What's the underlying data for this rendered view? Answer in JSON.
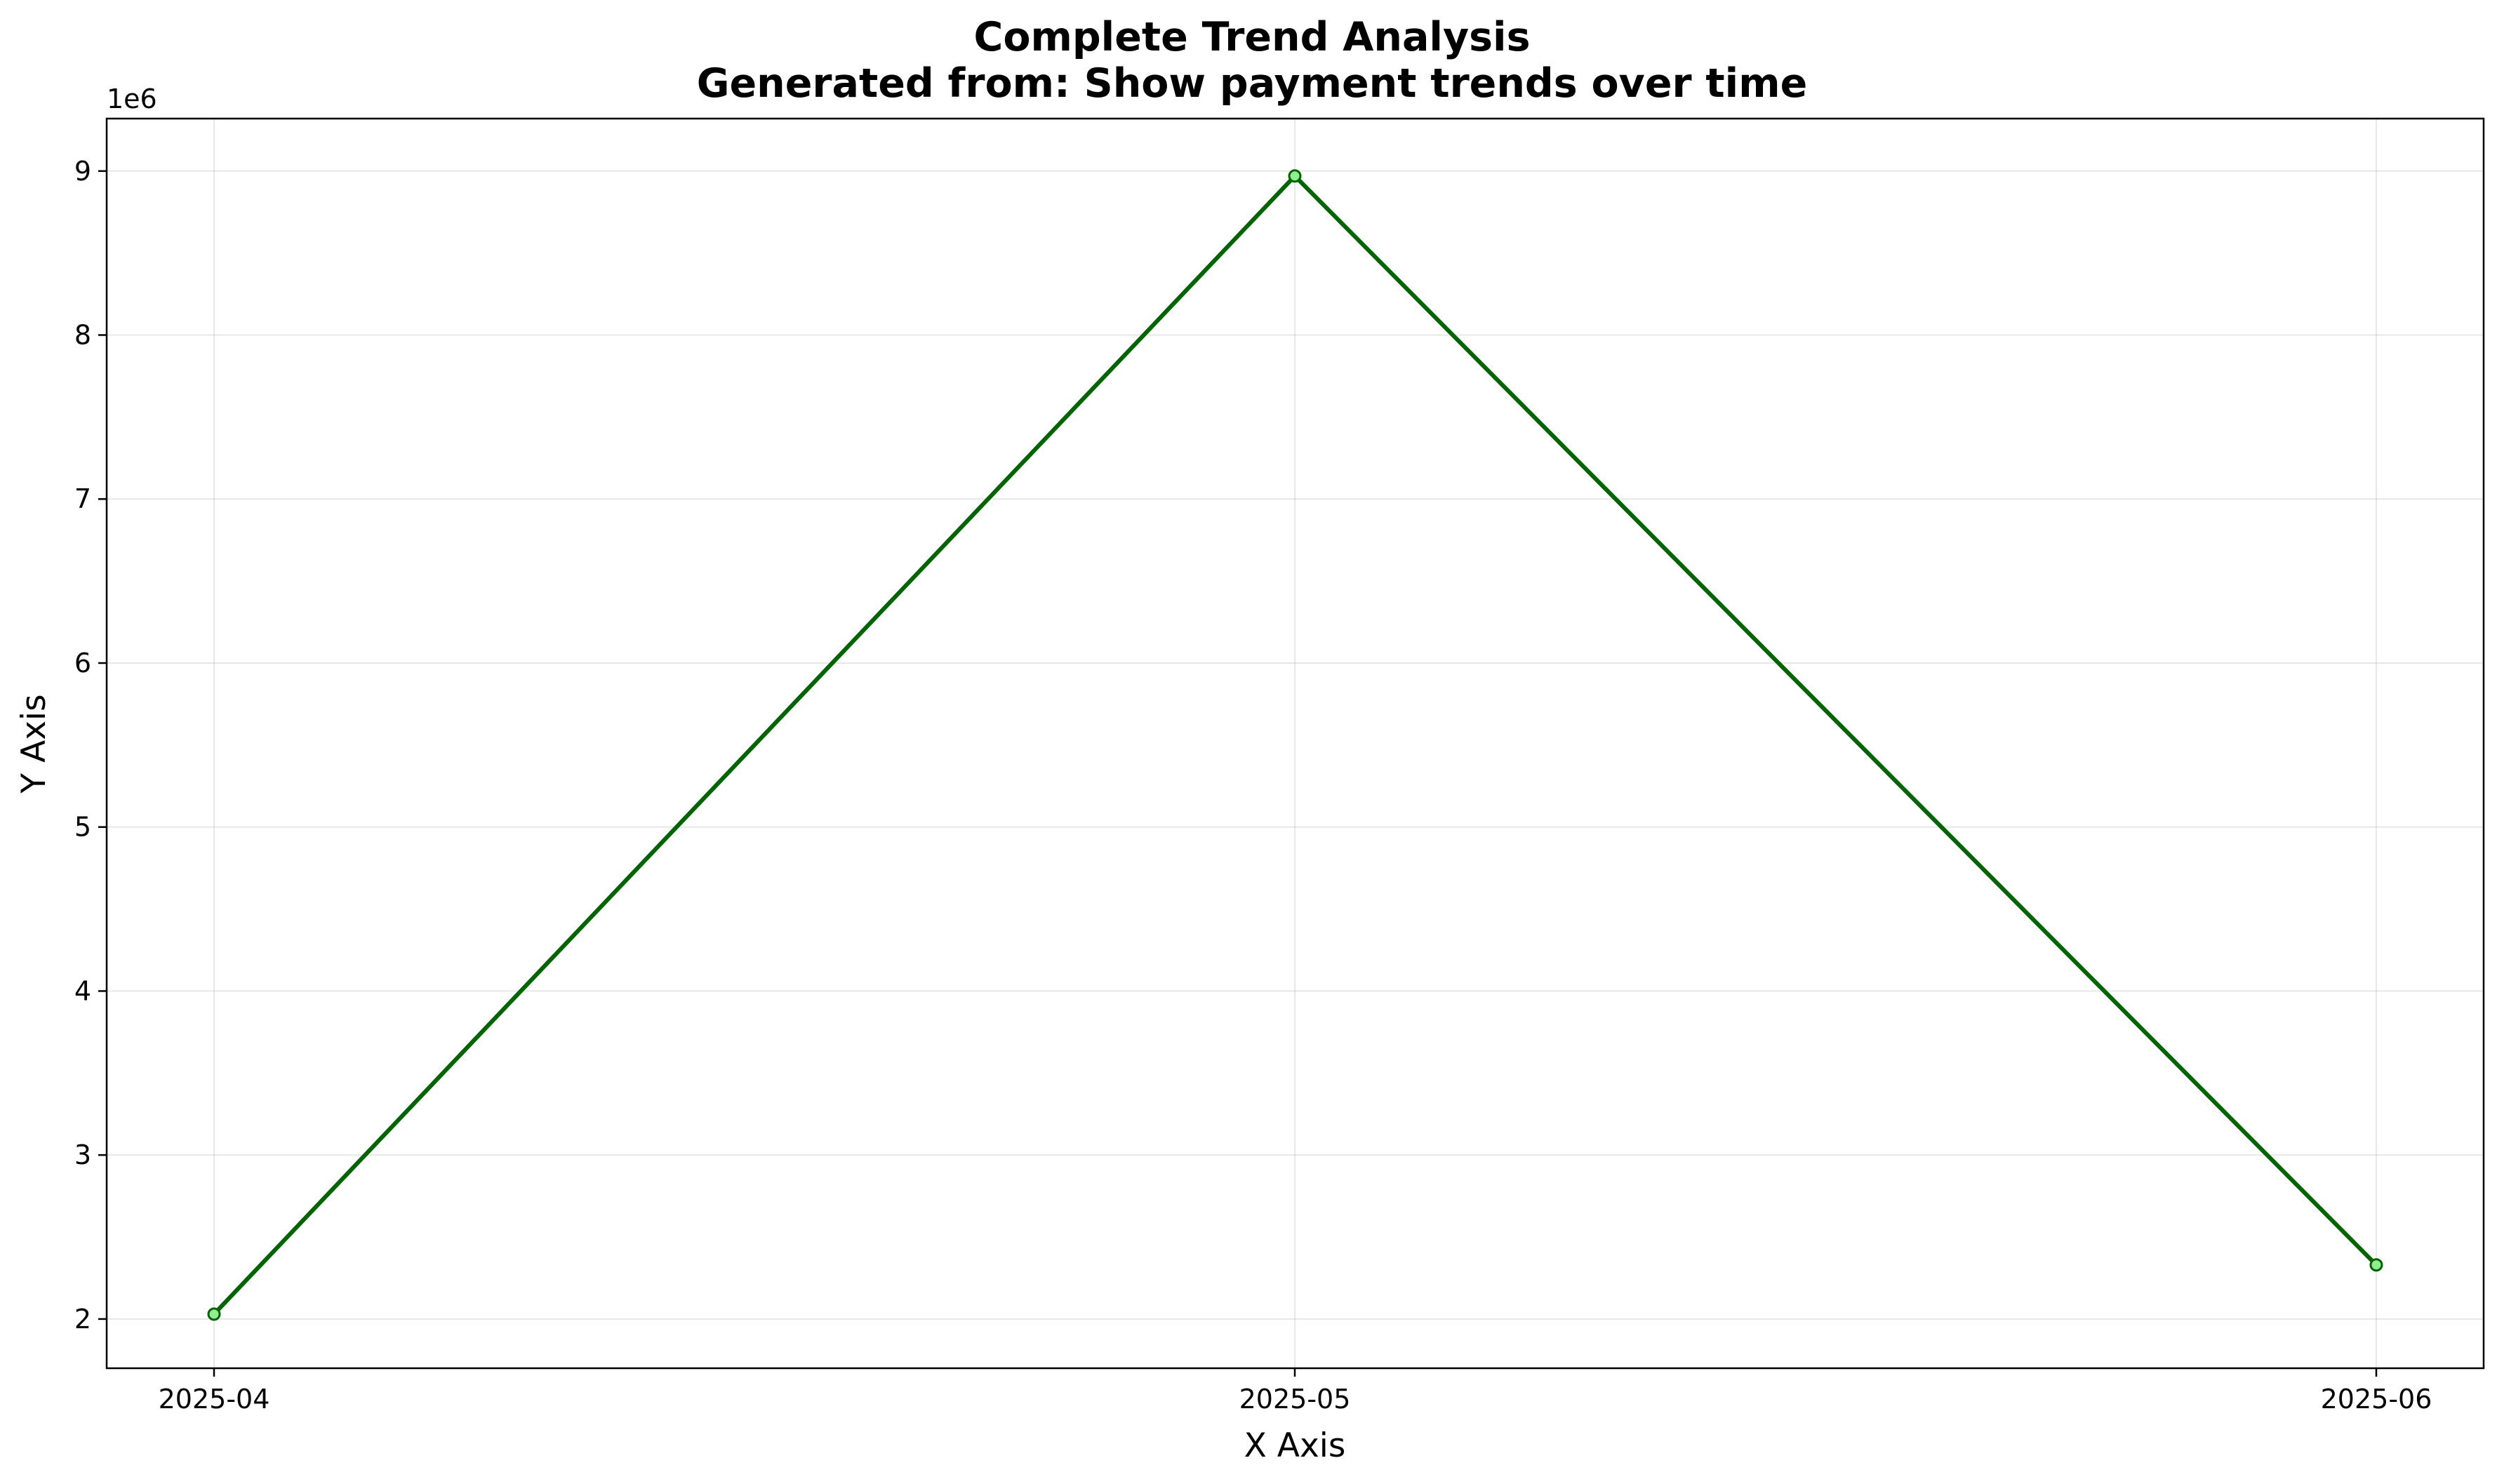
{
  "chart_data": {
    "type": "line",
    "title": "Complete Trend Analysis",
    "subtitle": "Generated from: Show payment trends over time",
    "xlabel": "X Axis",
    "ylabel": "Y Axis",
    "y_offset_label": "1e6",
    "categories": [
      "2025-04",
      "2025-05",
      "2025-06"
    ],
    "series": [
      {
        "values": [
          2030000,
          8970000,
          2330000
        ],
        "color": "#006400",
        "marker_color": "#90ee90"
      }
    ],
    "ylim": [
      1700000,
      9320000
    ],
    "y_ticks": [
      2000000,
      3000000,
      4000000,
      5000000,
      6000000,
      7000000,
      8000000,
      9000000
    ],
    "y_tick_labels": [
      "2",
      "3",
      "4",
      "5",
      "6",
      "7",
      "8",
      "9"
    ],
    "grid": true,
    "legend": "none"
  }
}
